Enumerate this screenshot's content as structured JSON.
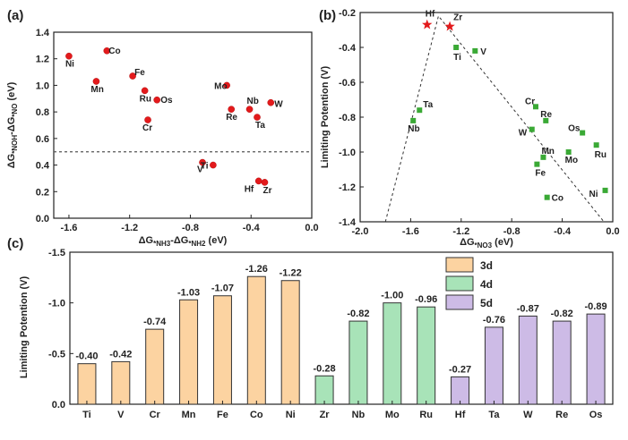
{
  "chart_data": [
    {
      "panel": "(a)",
      "type": "scatter",
      "xlabel_parts": [
        "ΔG",
        "*NH3",
        "-ΔG",
        "*NH2",
        " (eV)"
      ],
      "ylabel_parts": [
        "ΔG",
        "*NOH",
        "-ΔG",
        "*NO",
        " (eV)"
      ],
      "xlim": [
        -1.7,
        0.0
      ],
      "ylim": [
        0.0,
        1.4
      ],
      "xticks": [
        "-1.6",
        "-1.2",
        "-0.8",
        "-0.4",
        "0.0"
      ],
      "xtick_values": [
        -1.6,
        -1.2,
        -0.8,
        -0.4,
        0.0
      ],
      "yticks": [
        "0.0",
        "0.2",
        "0.4",
        "0.6",
        "0.8",
        "1.0",
        "1.2",
        "1.4"
      ],
      "ytick_values": [
        0.0,
        0.2,
        0.4,
        0.6,
        0.8,
        1.0,
        1.2,
        1.4
      ],
      "reference_line_y": 0.5,
      "marker_color": "#e31a1c",
      "points": [
        {
          "label": "Ni",
          "x": -1.6,
          "y": 1.22
        },
        {
          "label": "Co",
          "x": -1.35,
          "y": 1.26
        },
        {
          "label": "Mn",
          "x": -1.42,
          "y": 1.03
        },
        {
          "label": "Fe",
          "x": -1.18,
          "y": 1.07
        },
        {
          "label": "Ru",
          "x": -1.1,
          "y": 0.96
        },
        {
          "label": "Os",
          "x": -1.02,
          "y": 0.89
        },
        {
          "label": "Cr",
          "x": -1.08,
          "y": 0.74
        },
        {
          "label": "Mo",
          "x": -0.56,
          "y": 1.0
        },
        {
          "label": "Nb",
          "x": -0.41,
          "y": 0.82
        },
        {
          "label": "Re",
          "x": -0.53,
          "y": 0.82
        },
        {
          "label": "Ta",
          "x": -0.36,
          "y": 0.76
        },
        {
          "label": "W",
          "x": -0.27,
          "y": 0.87
        },
        {
          "label": "V",
          "x": -0.72,
          "y": 0.42
        },
        {
          "label": "Ti",
          "x": -0.65,
          "y": 0.4
        },
        {
          "label": "Hf",
          "x": -0.35,
          "y": 0.28
        },
        {
          "label": "Zr",
          "x": -0.31,
          "y": 0.27
        }
      ]
    },
    {
      "panel": "(b)",
      "type": "scatter",
      "xlabel_parts": [
        "ΔG",
        "*NO3",
        " (eV)"
      ],
      "ylabel": "Limiting Potention (V)",
      "xlim": [
        -2.0,
        0.0
      ],
      "ylim": [
        -1.4,
        -0.2
      ],
      "xticks": [
        "-2.0",
        "-1.6",
        "-1.2",
        "-0.8",
        "-0.4",
        "0.0"
      ],
      "xtick_values": [
        -2.0,
        -1.6,
        -1.2,
        -0.8,
        -0.4,
        0.0
      ],
      "yticks": [
        "-0.2",
        "-0.4",
        "-0.6",
        "-0.8",
        "-1.0",
        "-1.2",
        "-1.4"
      ],
      "ytick_values": [
        -0.2,
        -0.4,
        -0.6,
        -0.8,
        -1.0,
        -1.2,
        -1.4
      ],
      "volcano_line": [
        [
          -1.8,
          -1.4
        ],
        [
          -1.38,
          -0.22
        ],
        [
          -0.07,
          -1.4
        ]
      ],
      "square_color": "#3aa935",
      "star_color": "#e31a1c",
      "points": [
        {
          "label": "Hf",
          "x": -1.47,
          "y": -0.27,
          "marker": "star"
        },
        {
          "label": "Zr",
          "x": -1.29,
          "y": -0.28,
          "marker": "star"
        },
        {
          "label": "Ti",
          "x": -1.24,
          "y": -0.4,
          "marker": "square"
        },
        {
          "label": "V",
          "x": -1.09,
          "y": -0.42,
          "marker": "square"
        },
        {
          "label": "Ta",
          "x": -1.53,
          "y": -0.76,
          "marker": "square"
        },
        {
          "label": "Nb",
          "x": -1.58,
          "y": -0.82,
          "marker": "square"
        },
        {
          "label": "Cr",
          "x": -0.61,
          "y": -0.74,
          "marker": "square"
        },
        {
          "label": "Re",
          "x": -0.53,
          "y": -0.82,
          "marker": "square"
        },
        {
          "label": "W",
          "x": -0.64,
          "y": -0.87,
          "marker": "square"
        },
        {
          "label": "Os",
          "x": -0.24,
          "y": -0.89,
          "marker": "square"
        },
        {
          "label": "Mn",
          "x": -0.55,
          "y": -1.03,
          "marker": "square"
        },
        {
          "label": "Mo",
          "x": -0.35,
          "y": -1.0,
          "marker": "square"
        },
        {
          "label": "Ru",
          "x": -0.13,
          "y": -0.96,
          "marker": "square"
        },
        {
          "label": "Fe",
          "x": -0.6,
          "y": -1.07,
          "marker": "square"
        },
        {
          "label": "Co",
          "x": -0.52,
          "y": -1.26,
          "marker": "square"
        },
        {
          "label": "Ni",
          "x": -0.06,
          "y": -1.22,
          "marker": "square"
        }
      ]
    },
    {
      "panel": "(c)",
      "type": "bar",
      "ylabel": "Limiting Potention (V)",
      "ylim": [
        0.0,
        -1.5
      ],
      "yticks": [
        "0.0",
        "-0.5",
        "-1.0",
        "-1.5"
      ],
      "ytick_values": [
        0.0,
        -0.5,
        -1.0,
        -1.5
      ],
      "groups": [
        {
          "name": "3d",
          "color": "#fcd3a1",
          "edge": "#333333"
        },
        {
          "name": "4d",
          "color": "#a8e3b8",
          "edge": "#333333"
        },
        {
          "name": "5d",
          "color": "#cdbbe6",
          "edge": "#333333"
        }
      ],
      "categories": [
        "Ti",
        "V",
        "Cr",
        "Mn",
        "Fe",
        "Co",
        "Ni",
        "Zr",
        "Nb",
        "Mo",
        "Ru",
        "Hf",
        "Ta",
        "W",
        "Re",
        "Os"
      ],
      "values": [
        -0.4,
        -0.42,
        -0.74,
        -1.03,
        -1.07,
        -1.26,
        -1.22,
        -0.28,
        -0.82,
        -1.0,
        -0.96,
        -0.27,
        -0.76,
        -0.87,
        -0.82,
        -0.89
      ],
      "value_labels": [
        "-0.40",
        "-0.42",
        "-0.74",
        "-1.03",
        "-1.07",
        "-1.26",
        "-1.22",
        "-0.28",
        "-0.82",
        "-1.00",
        "-0.96",
        "-0.27",
        "-0.76",
        "-0.87",
        "-0.82",
        "-0.89"
      ],
      "group_index": [
        0,
        0,
        0,
        0,
        0,
        0,
        0,
        1,
        1,
        1,
        1,
        2,
        2,
        2,
        2,
        2
      ]
    }
  ]
}
